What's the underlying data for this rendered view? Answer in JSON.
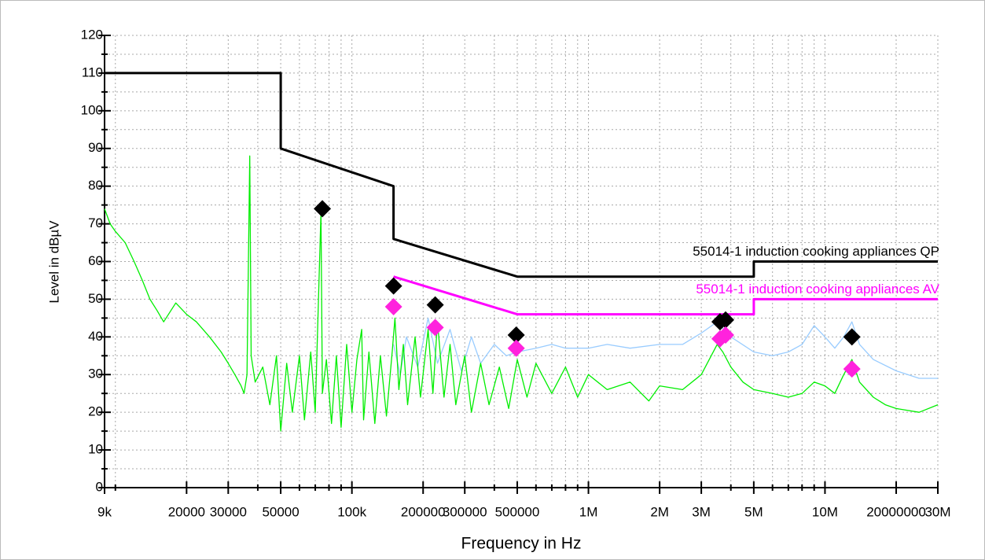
{
  "chart_data": {
    "type": "line",
    "x_label": "Frequency in Hz",
    "y_label": "Level in dBµV",
    "xlog": true,
    "grid": true,
    "xlim": [
      9000,
      30000000
    ],
    "ylim": [
      0,
      120
    ],
    "xticks": [
      {
        "value": 9000,
        "label": "9k"
      },
      20000,
      30000,
      50000,
      {
        "value": 100000,
        "label": "100k"
      },
      200000,
      300000,
      500000,
      {
        "value": 1000000,
        "label": "1M"
      },
      {
        "value": 2000000,
        "label": "2M"
      },
      {
        "value": 3000000,
        "label": "3M"
      },
      {
        "value": 5000000,
        "label": "5M"
      },
      {
        "value": 10000000,
        "label": "10M"
      },
      20000000,
      {
        "value": 30000000,
        "label": "30M"
      }
    ],
    "xminor": [
      10000,
      40000,
      60000,
      70000,
      80000,
      90000,
      400000,
      600000,
      700000,
      800000,
      900000,
      4000000,
      6000000,
      7000000,
      8000000,
      9000000
    ],
    "yticks": [
      0,
      10,
      20,
      30,
      40,
      50,
      60,
      70,
      80,
      90,
      100,
      110,
      120
    ],
    "yminor": [
      5,
      15,
      25,
      35,
      45,
      55,
      65,
      75,
      85,
      95,
      105,
      115
    ],
    "series": [
      {
        "color": "#99ccff",
        "x": [
          150000,
          160000,
          170000,
          190000,
          210000,
          230000,
          260000,
          290000,
          320000,
          350000,
          400000,
          450000,
          500000,
          600000,
          700000,
          800000,
          1000000,
          1200000,
          1500000,
          2000000,
          2500000,
          3000000,
          3500000,
          4000000,
          5000000,
          6000000,
          7000000,
          8000000,
          9000000,
          10000000,
          11000000,
          12000000,
          13000000,
          14000000,
          16000000,
          20000000,
          25000000,
          30000000
        ],
        "values": [
          38,
          30,
          40,
          32,
          45,
          33,
          42,
          31,
          40,
          33,
          38,
          35,
          36,
          37,
          38,
          37,
          37,
          38,
          37,
          38,
          38,
          41,
          44,
          40,
          36,
          35,
          36,
          38,
          43,
          40,
          37,
          40,
          44,
          38,
          34,
          31,
          29,
          29
        ]
      },
      {
        "color": "#00ee00",
        "x": [
          9000,
          9500,
          10000,
          11000,
          12000,
          13000,
          14000,
          15000,
          16000,
          18000,
          20000,
          22000,
          25000,
          28000,
          30000,
          32000,
          34000,
          35000,
          36000,
          37000,
          37500,
          39000,
          42000,
          45000,
          48000,
          50000,
          53000,
          56000,
          60000,
          63000,
          67000,
          70000,
          74000,
          75000,
          78000,
          82000,
          86000,
          90000,
          95000,
          100000,
          105000,
          110000,
          112000,
          118000,
          125000,
          132000,
          140000,
          148000,
          152000,
          158000,
          165000,
          172000,
          185000,
          195000,
          210000,
          220000,
          230000,
          245000,
          260000,
          275000,
          300000,
          320000,
          350000,
          380000,
          420000,
          460000,
          500000,
          550000,
          600000,
          700000,
          800000,
          900000,
          1000000,
          1200000,
          1500000,
          1800000,
          2000000,
          2500000,
          3000000,
          3500000,
          3700000,
          4000000,
          4500000,
          5000000,
          6000000,
          7000000,
          8000000,
          9000000,
          10000000,
          11000000,
          12000000,
          13000000,
          14000000,
          16000000,
          18000000,
          20000000,
          25000000,
          30000000
        ],
        "values": [
          74,
          70,
          68,
          65,
          60,
          55,
          50,
          47,
          44,
          49,
          46,
          44,
          40,
          36,
          33,
          30,
          27,
          25,
          30,
          88,
          35,
          28,
          32,
          22,
          35,
          15,
          33,
          20,
          35,
          18,
          36,
          20,
          73,
          25,
          34,
          17,
          35,
          16,
          38,
          20,
          34,
          42,
          18,
          36,
          17,
          35,
          19,
          36,
          45,
          26,
          38,
          22,
          40,
          24,
          42,
          25,
          44,
          24,
          38,
          22,
          35,
          20,
          33,
          22,
          32,
          21,
          34,
          24,
          33,
          25,
          32,
          24,
          30,
          26,
          28,
          23,
          27,
          26,
          30,
          38,
          36,
          32,
          28,
          26,
          25,
          24,
          25,
          28,
          27,
          25,
          30,
          34,
          28,
          24,
          22,
          21,
          20,
          22
        ]
      },
      {
        "name": "55014-1 induction cooking appliances QP",
        "color": "#000000",
        "width": 3,
        "x": [
          9000,
          50000,
          50000,
          150000,
          150000,
          500000,
          5000000,
          5000000,
          30000000
        ],
        "values": [
          110,
          110,
          90,
          80,
          66,
          56,
          56,
          60,
          60
        ]
      },
      {
        "name": "55014-1 induction cooking appliances AV",
        "color": "#ff00ff",
        "width": 3,
        "x": [
          150000,
          500000,
          5000000,
          5000000,
          30000000
        ],
        "values": [
          56,
          46,
          46,
          50,
          50
        ]
      },
      {
        "color": "#000000",
        "marker": "diamond",
        "x": [
          75000,
          150000,
          225000,
          495000,
          3600000,
          3800000,
          13000000
        ],
        "values": [
          74,
          53.5,
          48.5,
          40.5,
          44,
          44.5,
          40
        ]
      },
      {
        "color": "#ff22dd",
        "marker": "diamond",
        "x": [
          150000,
          225000,
          495000,
          3600000,
          3800000,
          13000000
        ],
        "values": [
          48,
          42.5,
          37,
          39.5,
          40.5,
          31.5
        ]
      }
    ]
  }
}
